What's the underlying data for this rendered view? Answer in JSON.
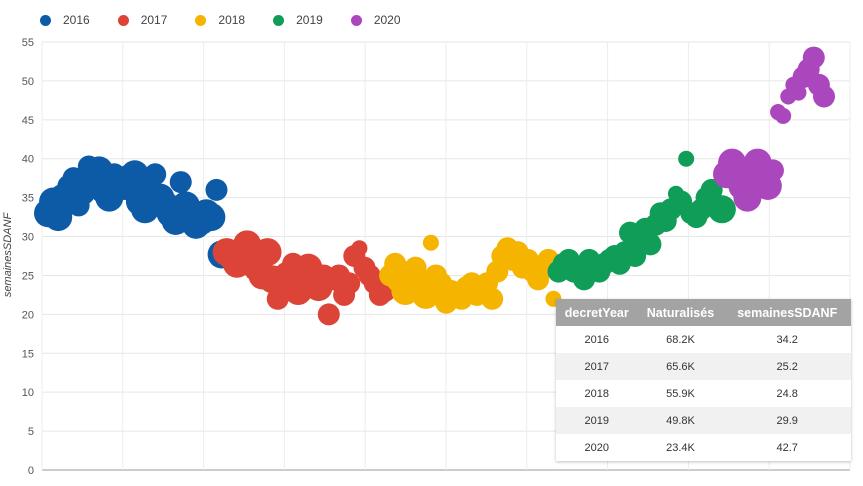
{
  "legend": [
    {
      "label": "2016",
      "color": "#0d5aa7"
    },
    {
      "label": "2017",
      "color": "#db4437"
    },
    {
      "label": "2018",
      "color": "#f4b400"
    },
    {
      "label": "2019",
      "color": "#0f9d58"
    },
    {
      "label": "2020",
      "color": "#ab47bc"
    }
  ],
  "table": {
    "headers": [
      "decretYear",
      "Naturalisés",
      "semainesSDANF"
    ],
    "rows": [
      [
        "2016",
        "68.2K",
        "34.2"
      ],
      [
        "2017",
        "65.6K",
        "25.2"
      ],
      [
        "2018",
        "55.9K",
        "24.8"
      ],
      [
        "2019",
        "49.8K",
        "29.9"
      ],
      [
        "2020",
        "23.4K",
        "42.7"
      ]
    ]
  },
  "chart_data": {
    "type": "scatter",
    "title": "",
    "xlabel": "",
    "ylabel": "semainesSDANF",
    "ylim": [
      0,
      55
    ],
    "yticks": [
      0,
      5,
      10,
      15,
      20,
      25,
      30,
      35,
      40,
      45,
      50,
      55
    ],
    "grid": true,
    "legend_position": "top-left",
    "series": [
      {
        "name": "2016",
        "color": "#0d5aa7",
        "points": [
          [
            1,
            33
          ],
          [
            2,
            34.5
          ],
          [
            3,
            32.5
          ],
          [
            4,
            35
          ],
          [
            5,
            36.5
          ],
          [
            6,
            37.5
          ],
          [
            7,
            34
          ],
          [
            8,
            35.5
          ],
          [
            9,
            39
          ],
          [
            10,
            37
          ],
          [
            11,
            38.5
          ],
          [
            12,
            36
          ],
          [
            13,
            35
          ],
          [
            14,
            38
          ],
          [
            15,
            37
          ],
          [
            16,
            36.5
          ],
          [
            17,
            37.5
          ],
          [
            18,
            38
          ],
          [
            19,
            34.5
          ],
          [
            20,
            33.5
          ],
          [
            21,
            36
          ],
          [
            22,
            38
          ],
          [
            23,
            35
          ],
          [
            24,
            34
          ],
          [
            25,
            33
          ],
          [
            26,
            32
          ],
          [
            27,
            37
          ],
          [
            28,
            34
          ],
          [
            29,
            33
          ],
          [
            30,
            31.5
          ],
          [
            31,
            32
          ],
          [
            32,
            33
          ],
          [
            33,
            32.5
          ],
          [
            34,
            36
          ],
          [
            35,
            27.7
          ]
        ],
        "sizes": [
          3,
          3,
          3,
          3,
          2,
          2,
          2,
          2,
          2,
          3,
          3,
          3,
          3,
          2,
          3,
          3,
          3,
          3,
          3,
          3,
          2,
          2,
          3,
          3,
          3,
          3,
          2,
          3,
          3,
          3,
          3,
          3,
          3,
          2,
          3
        ]
      },
      {
        "name": "2017",
        "color": "#db4437",
        "points": [
          [
            36,
            28
          ],
          [
            37,
            27.5
          ],
          [
            38,
            26.5
          ],
          [
            39,
            28.5
          ],
          [
            40,
            29
          ],
          [
            41,
            27
          ],
          [
            42,
            26
          ],
          [
            43,
            25
          ],
          [
            44,
            28
          ],
          [
            45,
            24.5
          ],
          [
            46,
            22
          ],
          [
            47,
            23
          ],
          [
            48,
            25
          ],
          [
            49,
            26.5
          ],
          [
            50,
            23
          ],
          [
            51,
            24
          ],
          [
            52,
            26
          ],
          [
            53,
            24.5
          ],
          [
            54,
            23.5
          ],
          [
            55,
            25
          ],
          [
            56,
            20
          ],
          [
            57,
            24.5
          ],
          [
            58,
            25
          ],
          [
            59,
            22.5
          ],
          [
            60,
            24
          ],
          [
            61,
            27.5
          ],
          [
            62,
            28.5
          ],
          [
            63,
            26
          ],
          [
            64,
            25
          ],
          [
            65,
            24
          ],
          [
            66,
            22.5
          ],
          [
            67,
            23
          ]
        ],
        "sizes": [
          3,
          3,
          3,
          2,
          3,
          3,
          3,
          3,
          3,
          3,
          2,
          2,
          3,
          2,
          3,
          3,
          3,
          2,
          3,
          2,
          2,
          2,
          2,
          2,
          2,
          2,
          1,
          2,
          2,
          2,
          2,
          2
        ]
      },
      {
        "name": "2018",
        "color": "#f4b400",
        "points": [
          [
            68,
            25
          ],
          [
            69,
            26.5
          ],
          [
            70,
            24.5
          ],
          [
            71,
            23
          ],
          [
            72,
            25.5
          ],
          [
            73,
            26
          ],
          [
            74,
            24
          ],
          [
            75,
            22.5
          ],
          [
            76,
            29.2
          ],
          [
            77,
            25
          ],
          [
            78,
            24
          ],
          [
            79,
            21.5
          ],
          [
            80,
            23
          ],
          [
            81,
            22.5
          ],
          [
            82,
            22
          ],
          [
            83,
            23.5
          ],
          [
            84,
            24
          ],
          [
            85,
            22.5
          ],
          [
            86,
            23
          ],
          [
            87,
            24
          ],
          [
            88,
            22
          ],
          [
            89,
            25.5
          ],
          [
            90,
            27.5
          ],
          [
            91,
            28.5
          ],
          [
            92,
            27
          ],
          [
            93,
            28
          ],
          [
            94,
            26
          ],
          [
            95,
            27
          ],
          [
            96,
            25.5
          ],
          [
            97,
            24.5
          ],
          [
            98,
            26
          ],
          [
            99,
            27
          ],
          [
            100,
            22
          ]
        ],
        "sizes": [
          2,
          2,
          3,
          3,
          2,
          2,
          3,
          3,
          1,
          2,
          2,
          2,
          2,
          2,
          2,
          2,
          2,
          2,
          2,
          2,
          2,
          2,
          2,
          2,
          2,
          2,
          2,
          2,
          2,
          2,
          2,
          2,
          1
        ]
      },
      {
        "name": "2019",
        "color": "#0f9d58",
        "points": [
          [
            101,
            25.5
          ],
          [
            102,
            26.5
          ],
          [
            103,
            27
          ],
          [
            104,
            25.5
          ],
          [
            105,
            26
          ],
          [
            106,
            24.5
          ],
          [
            107,
            27
          ],
          [
            108,
            26
          ],
          [
            109,
            25.5
          ],
          [
            110,
            26.5
          ],
          [
            111,
            27
          ],
          [
            112,
            27.5
          ],
          [
            113,
            26.5
          ],
          [
            114,
            28
          ],
          [
            115,
            30.5
          ],
          [
            116,
            27.5
          ],
          [
            117,
            29
          ],
          [
            118,
            31
          ],
          [
            119,
            29
          ],
          [
            120,
            31.5
          ],
          [
            121,
            33
          ],
          [
            122,
            32
          ],
          [
            123,
            33.5
          ],
          [
            124,
            35.5
          ],
          [
            125,
            34.5
          ],
          [
            126,
            40
          ],
          [
            127,
            33
          ],
          [
            128,
            32.5
          ],
          [
            129,
            33.5
          ],
          [
            130,
            35
          ],
          [
            131,
            36
          ],
          [
            132,
            34
          ],
          [
            133,
            33.5
          ]
        ],
        "sizes": [
          2,
          2,
          2,
          2,
          2,
          2,
          2,
          2,
          2,
          2,
          2,
          2,
          2,
          2,
          2,
          2,
          2,
          2,
          2,
          2,
          2,
          2,
          2,
          1,
          2,
          1,
          2,
          2,
          2,
          2,
          2,
          2,
          3
        ]
      },
      {
        "name": "2020",
        "color": "#ab47bc",
        "points": [
          [
            134,
            38
          ],
          [
            135,
            39.5
          ],
          [
            136,
            38
          ],
          [
            137,
            36.5
          ],
          [
            138,
            35
          ],
          [
            139,
            37.5
          ],
          [
            140,
            39.5
          ],
          [
            141,
            38
          ],
          [
            142,
            36.5
          ],
          [
            143,
            38.5
          ],
          [
            144,
            46
          ],
          [
            145,
            45.5
          ],
          [
            146,
            48
          ],
          [
            147,
            49.5
          ],
          [
            148,
            48.5
          ],
          [
            149,
            50.5
          ],
          [
            150,
            51.5
          ],
          [
            151,
            53
          ],
          [
            152,
            49.5
          ],
          [
            153,
            48
          ]
        ],
        "sizes": [
          3,
          3,
          3,
          3,
          3,
          3,
          3,
          3,
          3,
          2,
          1,
          1,
          1,
          1,
          1,
          2,
          2,
          2,
          2,
          2
        ]
      }
    ]
  }
}
